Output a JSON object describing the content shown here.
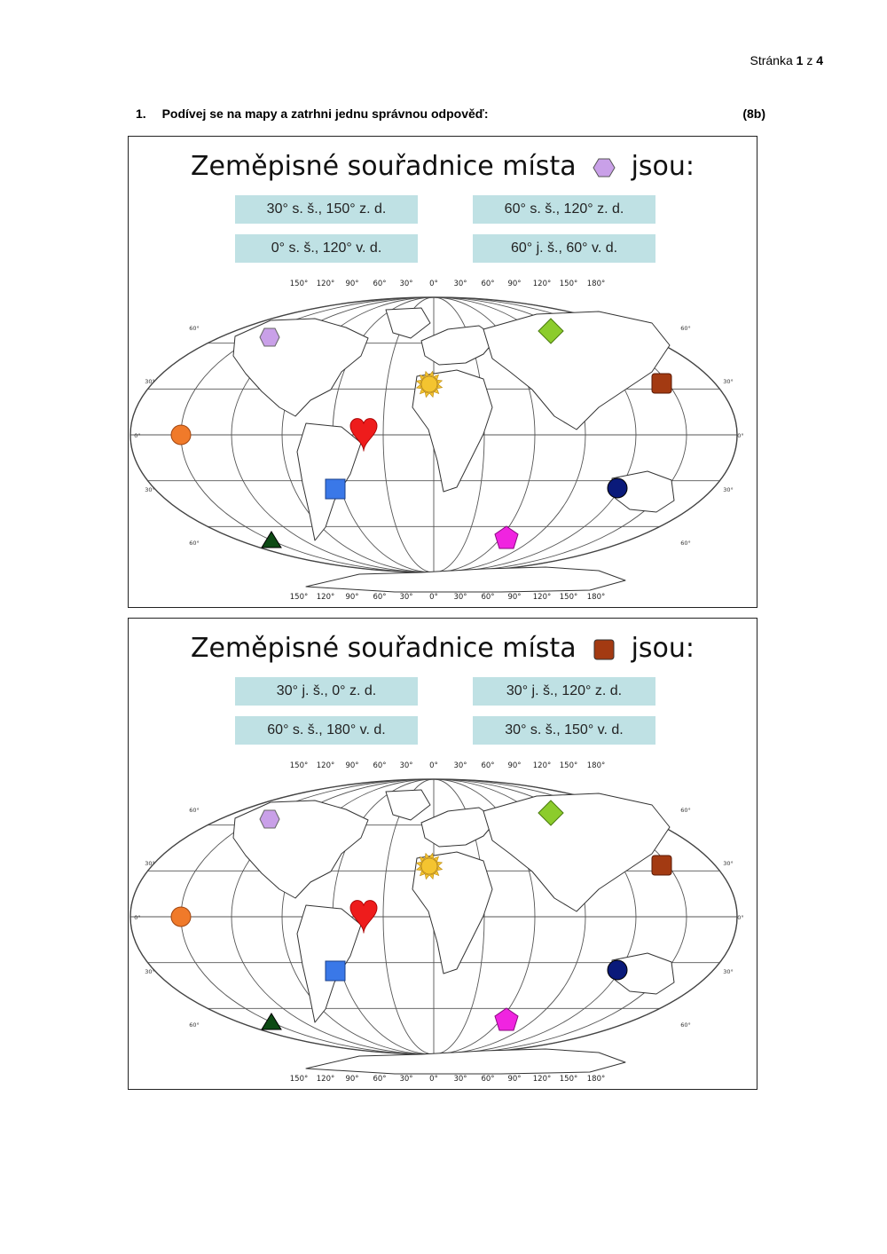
{
  "header": {
    "page_word": "Stránka",
    "page_current": "1",
    "page_sep": "z",
    "page_total": "4"
  },
  "question": {
    "number": "1.",
    "text": "Podívej se na mapy a zatrhni jednu správnou odpověď:",
    "points": "(8b)"
  },
  "panels": [
    {
      "title_before": "Zeměpisné souřadnice místa",
      "title_after": "jsou:",
      "title_icon": "hexagon-icon",
      "title_icon_color": "#c9a0e8",
      "options": [
        "30° s. š., 150° z. d.",
        "60° s. š., 120° z. d.",
        "0° s. š., 120° v. d.",
        "60° j. š., 60° v. d."
      ]
    },
    {
      "title_before": "Zeměpisné souřadnice místa",
      "title_after": "jsou:",
      "title_icon": "square-icon",
      "title_icon_color": "#a33a12",
      "options": [
        "30° j. š., 0° z. d.",
        "30° j. š., 120° z. d.",
        "60° s. š., 180° v. d.",
        "30° s. š., 150° v. d."
      ]
    }
  ],
  "map": {
    "top_longitudes": [
      "150°",
      "120°",
      "90°",
      "60°",
      "30°",
      "0°",
      "30°",
      "60°",
      "90°",
      "120°",
      "150°",
      "180°"
    ],
    "bottom_longitudes": [
      "150°",
      "120°",
      "90°",
      "60°",
      "30°",
      "0°",
      "30°",
      "60°",
      "90°",
      "120°",
      "150°",
      "180°"
    ],
    "left_latitudes": [
      "60°",
      "30°",
      "0°",
      "30°",
      "60°"
    ],
    "right_latitudes": [
      "60°",
      "30°",
      "0°",
      "30°",
      "60°"
    ],
    "markers": [
      {
        "name": "hexagon-marker",
        "color": "#c9a0e8"
      },
      {
        "name": "diamond-marker",
        "color": "#8ccc2c"
      },
      {
        "name": "sun-marker",
        "color": "#f4c430"
      },
      {
        "name": "square-marker-brown",
        "color": "#a33a12"
      },
      {
        "name": "circle-marker-orange",
        "color": "#f07a2a"
      },
      {
        "name": "heart-marker",
        "color": "#ee1c1c"
      },
      {
        "name": "square-marker-blue",
        "color": "#3a78e8"
      },
      {
        "name": "circle-marker-navy",
        "color": "#0a1a7a"
      },
      {
        "name": "triangle-marker",
        "color": "#0d4a14"
      },
      {
        "name": "pentagon-marker",
        "color": "#f024e0"
      }
    ]
  }
}
